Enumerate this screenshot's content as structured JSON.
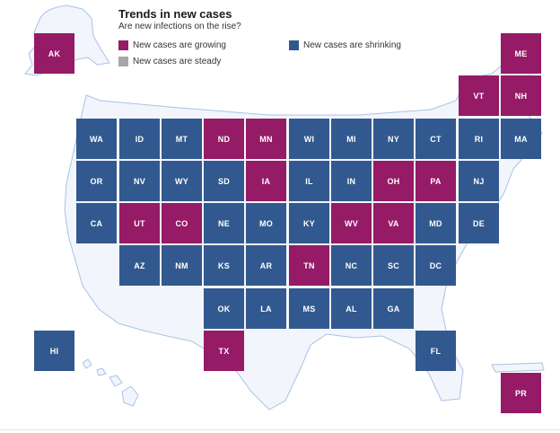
{
  "title": "Trends in new cases",
  "subtitle": "Are new infections on the rise?",
  "colors": {
    "growing": "#951b66",
    "shrinking": "#32598f",
    "steady": "#a6a6a6",
    "land": "#f2f5fc",
    "outline": "#a9c3e6"
  },
  "legend": [
    {
      "status": "growing",
      "label": "New cases are growing"
    },
    {
      "status": "shrinking",
      "label": "New cases are shrinking"
    },
    {
      "status": "steady",
      "label": "New cases are steady"
    }
  ],
  "states": [
    {
      "abbr": "AK",
      "status": "growing",
      "row": 0,
      "col": 0
    },
    {
      "abbr": "ME",
      "status": "growing",
      "row": 0,
      "col": 11
    },
    {
      "abbr": "VT",
      "status": "growing",
      "row": 1,
      "col": 10
    },
    {
      "abbr": "NH",
      "status": "growing",
      "row": 1,
      "col": 11
    },
    {
      "abbr": "WA",
      "status": "shrinking",
      "row": 2,
      "col": 1
    },
    {
      "abbr": "ID",
      "status": "shrinking",
      "row": 2,
      "col": 2
    },
    {
      "abbr": "MT",
      "status": "shrinking",
      "row": 2,
      "col": 3
    },
    {
      "abbr": "ND",
      "status": "growing",
      "row": 2,
      "col": 4
    },
    {
      "abbr": "MN",
      "status": "growing",
      "row": 2,
      "col": 5
    },
    {
      "abbr": "WI",
      "status": "shrinking",
      "row": 2,
      "col": 6
    },
    {
      "abbr": "MI",
      "status": "shrinking",
      "row": 2,
      "col": 7
    },
    {
      "abbr": "NY",
      "status": "shrinking",
      "row": 2,
      "col": 8
    },
    {
      "abbr": "CT",
      "status": "shrinking",
      "row": 2,
      "col": 9
    },
    {
      "abbr": "RI",
      "status": "shrinking",
      "row": 2,
      "col": 10
    },
    {
      "abbr": "MA",
      "status": "shrinking",
      "row": 2,
      "col": 11
    },
    {
      "abbr": "OR",
      "status": "shrinking",
      "row": 3,
      "col": 1
    },
    {
      "abbr": "NV",
      "status": "shrinking",
      "row": 3,
      "col": 2
    },
    {
      "abbr": "WY",
      "status": "shrinking",
      "row": 3,
      "col": 3
    },
    {
      "abbr": "SD",
      "status": "shrinking",
      "row": 3,
      "col": 4
    },
    {
      "abbr": "IA",
      "status": "growing",
      "row": 3,
      "col": 5
    },
    {
      "abbr": "IL",
      "status": "shrinking",
      "row": 3,
      "col": 6
    },
    {
      "abbr": "IN",
      "status": "shrinking",
      "row": 3,
      "col": 7
    },
    {
      "abbr": "OH",
      "status": "growing",
      "row": 3,
      "col": 8
    },
    {
      "abbr": "PA",
      "status": "growing",
      "row": 3,
      "col": 9
    },
    {
      "abbr": "NJ",
      "status": "shrinking",
      "row": 3,
      "col": 10
    },
    {
      "abbr": "CA",
      "status": "shrinking",
      "row": 4,
      "col": 1
    },
    {
      "abbr": "UT",
      "status": "growing",
      "row": 4,
      "col": 2
    },
    {
      "abbr": "CO",
      "status": "growing",
      "row": 4,
      "col": 3
    },
    {
      "abbr": "NE",
      "status": "shrinking",
      "row": 4,
      "col": 4
    },
    {
      "abbr": "MO",
      "status": "shrinking",
      "row": 4,
      "col": 5
    },
    {
      "abbr": "KY",
      "status": "shrinking",
      "row": 4,
      "col": 6
    },
    {
      "abbr": "WV",
      "status": "growing",
      "row": 4,
      "col": 7
    },
    {
      "abbr": "VA",
      "status": "growing",
      "row": 4,
      "col": 8
    },
    {
      "abbr": "MD",
      "status": "shrinking",
      "row": 4,
      "col": 9
    },
    {
      "abbr": "DE",
      "status": "shrinking",
      "row": 4,
      "col": 10
    },
    {
      "abbr": "AZ",
      "status": "shrinking",
      "row": 5,
      "col": 2
    },
    {
      "abbr": "NM",
      "status": "shrinking",
      "row": 5,
      "col": 3
    },
    {
      "abbr": "KS",
      "status": "shrinking",
      "row": 5,
      "col": 4
    },
    {
      "abbr": "AR",
      "status": "shrinking",
      "row": 5,
      "col": 5
    },
    {
      "abbr": "TN",
      "status": "growing",
      "row": 5,
      "col": 6
    },
    {
      "abbr": "NC",
      "status": "shrinking",
      "row": 5,
      "col": 7
    },
    {
      "abbr": "SC",
      "status": "shrinking",
      "row": 5,
      "col": 8
    },
    {
      "abbr": "DC",
      "status": "shrinking",
      "row": 5,
      "col": 9
    },
    {
      "abbr": "OK",
      "status": "shrinking",
      "row": 6,
      "col": 4
    },
    {
      "abbr": "LA",
      "status": "shrinking",
      "row": 6,
      "col": 5
    },
    {
      "abbr": "MS",
      "status": "shrinking",
      "row": 6,
      "col": 6
    },
    {
      "abbr": "AL",
      "status": "shrinking",
      "row": 6,
      "col": 7
    },
    {
      "abbr": "GA",
      "status": "shrinking",
      "row": 6,
      "col": 8
    },
    {
      "abbr": "HI",
      "status": "shrinking",
      "row": 7,
      "col": 0
    },
    {
      "abbr": "TX",
      "status": "growing",
      "row": 7,
      "col": 4
    },
    {
      "abbr": "FL",
      "status": "shrinking",
      "row": 7,
      "col": 9
    },
    {
      "abbr": "PR",
      "status": "growing",
      "row": 8,
      "col": 11
    }
  ]
}
